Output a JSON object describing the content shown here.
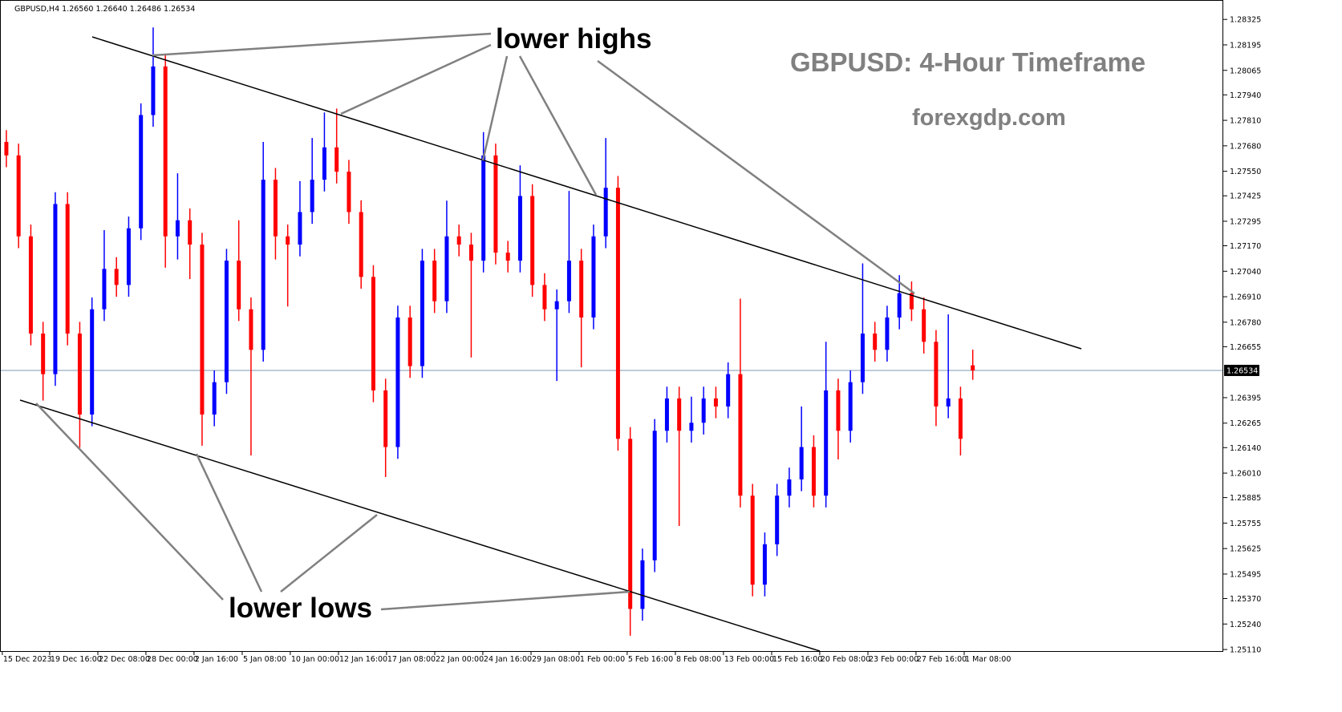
{
  "chart_data": {
    "type": "candlestick",
    "header": "GBPUSD,H4  1.26560 1.26640 1.26486 1.26534",
    "title": "GBPUSD: 4-Hour Timeframe",
    "subtitle": "forexgdp.com",
    "annotations": [
      "lower highs",
      "lower lows"
    ],
    "up_color": "#0000ff",
    "down_color": "#ff0000",
    "current_price": 1.26534,
    "open": [
      1.277,
      1.27631,
      1.27218,
      1.26722,
      1.26515,
      1.27383,
      1.26722,
      1.26309,
      1.26846,
      1.27052,
      1.2697,
      1.27259,
      1.27837,
      1.28085,
      1.27218,
      1.273,
      1.27176,
      1.26309,
      1.26474,
      1.27094,
      1.26846,
      1.26639,
      1.27507,
      1.27218,
      1.27176,
      1.27342,
      1.27507,
      1.27672,
      1.27548,
      1.27342,
      1.27011,
      1.26432,
      1.26143,
      1.26804,
      1.26556,
      1.27094,
      1.26887,
      1.27218,
      1.27176,
      1.27094,
      1.27631,
      1.27135,
      1.27094,
      1.27424,
      1.2697,
      1.26846,
      1.26887,
      1.27094,
      1.26804,
      1.27218,
      1.27466,
      1.26185,
      1.25317,
      1.25565,
      1.26226,
      1.26391,
      1.26226,
      1.26267,
      1.26391,
      1.2635,
      1.26515,
      1.25895,
      1.25441,
      1.25647,
      1.25895,
      1.25978,
      1.26143,
      1.25895,
      1.26432,
      1.26226,
      1.26474,
      1.26722,
      1.26639,
      1.26804,
      1.26928,
      1.26846,
      1.2668,
      1.2635,
      1.26391,
      1.2656
    ],
    "high": [
      1.2776,
      1.27691,
      1.27278,
      1.26782,
      1.27443,
      1.27443,
      1.26782,
      1.26906,
      1.2725,
      1.27112,
      1.27319,
      1.27897,
      1.28284,
      1.28145,
      1.2754,
      1.2736,
      1.27236,
      1.26534,
      1.27154,
      1.273,
      1.26906,
      1.277,
      1.27567,
      1.27278,
      1.275,
      1.2772,
      1.2785,
      1.2787,
      1.27608,
      1.27402,
      1.27071,
      1.26492,
      1.26864,
      1.26864,
      1.27154,
      1.27154,
      1.274,
      1.27278,
      1.27236,
      1.2775,
      1.27691,
      1.27195,
      1.2758,
      1.27484,
      1.2703,
      1.26947,
      1.2745,
      1.27154,
      1.27278,
      1.2772,
      1.27526,
      1.26245,
      1.25625,
      1.26286,
      1.26451,
      1.26451,
      1.264,
      1.26451,
      1.26451,
      1.26575,
      1.269,
      1.25955,
      1.25707,
      1.25955,
      1.26038,
      1.2635,
      1.26203,
      1.2668,
      1.26492,
      1.26534,
      1.2708,
      1.26782,
      1.26864,
      1.2702,
      1.26988,
      1.26906,
      1.2674,
      1.2682,
      1.26451,
      1.2664
    ],
    "low": [
      1.27571,
      1.27158,
      1.26662,
      1.2638,
      1.26455,
      1.26662,
      1.2614,
      1.26249,
      1.26786,
      1.2691,
      1.2691,
      1.27199,
      1.27777,
      1.27058,
      1.271,
      1.27,
      1.2615,
      1.26249,
      1.26414,
      1.26786,
      1.261,
      1.26579,
      1.271,
      1.2686,
      1.27116,
      1.27282,
      1.27447,
      1.27488,
      1.27282,
      1.26951,
      1.26372,
      1.2599,
      1.26083,
      1.26496,
      1.26496,
      1.26827,
      1.26827,
      1.27116,
      1.266,
      1.27034,
      1.27075,
      1.27034,
      1.27034,
      1.2691,
      1.26786,
      1.2648,
      1.26827,
      1.2655,
      1.26744,
      1.27158,
      1.26125,
      1.2518,
      1.25257,
      1.25505,
      1.26166,
      1.2574,
      1.26166,
      1.26207,
      1.2629,
      1.2629,
      1.25835,
      1.25381,
      1.25381,
      1.25587,
      1.25835,
      1.25918,
      1.25835,
      1.25835,
      1.2608,
      1.26166,
      1.26414,
      1.26579,
      1.26579,
      1.26744,
      1.26786,
      1.2662,
      1.2625,
      1.2629,
      1.261,
      1.26486
    ],
    "close": [
      1.27631,
      1.27218,
      1.26722,
      1.26515,
      1.27383,
      1.26722,
      1.26309,
      1.26846,
      1.27052,
      1.2697,
      1.27259,
      1.27837,
      1.28085,
      1.27218,
      1.273,
      1.27176,
      1.26309,
      1.26474,
      1.27094,
      1.26846,
      1.26639,
      1.27507,
      1.27218,
      1.27176,
      1.27342,
      1.27507,
      1.27672,
      1.27548,
      1.27342,
      1.27011,
      1.26432,
      1.26143,
      1.26804,
      1.26556,
      1.27094,
      1.26887,
      1.27218,
      1.27176,
      1.27094,
      1.27631,
      1.27135,
      1.27094,
      1.27424,
      1.2697,
      1.26846,
      1.26887,
      1.27094,
      1.26804,
      1.27218,
      1.27466,
      1.26185,
      1.25317,
      1.25565,
      1.26226,
      1.26391,
      1.26226,
      1.26267,
      1.26391,
      1.2635,
      1.26515,
      1.25895,
      1.25441,
      1.25647,
      1.25895,
      1.25978,
      1.26143,
      1.25895,
      1.26432,
      1.26226,
      1.26474,
      1.26722,
      1.26639,
      1.26804,
      1.26928,
      1.26846,
      1.2668,
      1.2635,
      1.26391,
      1.26185,
      1.26534
    ],
    "xlim": [
      -0.52,
      99.48
    ],
    "xticks": [
      {
        "value": -0.33,
        "label": "15 Dec 2023"
      },
      {
        "value": 3.54,
        "label": "19 Dec 16:00"
      },
      {
        "value": 7.48,
        "label": "22 Dec 08:00"
      },
      {
        "value": 11.41,
        "label": "28 Dec 00:00"
      },
      {
        "value": 15.34,
        "label": "2 Jan 16:00"
      },
      {
        "value": 19.28,
        "label": "5 Jan 08:00"
      },
      {
        "value": 23.21,
        "label": "10 Jan 00:00"
      },
      {
        "value": 27.15,
        "label": "12 Jan 16:00"
      },
      {
        "value": 31.08,
        "label": "17 Jan 08:00"
      },
      {
        "value": 35.02,
        "label": "22 Jan 00:00"
      },
      {
        "value": 38.95,
        "label": "24 Jan 16:00"
      },
      {
        "value": 42.89,
        "label": "29 Jan 08:00"
      },
      {
        "value": 46.82,
        "label": "1 Feb 00:00"
      },
      {
        "value": 50.75,
        "label": "5 Feb 16:00"
      },
      {
        "value": 54.69,
        "label": "8 Feb 08:00"
      },
      {
        "value": 58.62,
        "label": "13 Feb 00:00"
      },
      {
        "value": 62.56,
        "label": "15 Feb 16:00"
      },
      {
        "value": 66.49,
        "label": "20 Feb 08:00"
      },
      {
        "value": 70.43,
        "label": "23 Feb 00:00"
      },
      {
        "value": 74.36,
        "label": "27 Feb 16:00"
      },
      {
        "value": 78.3,
        "label": "1 Mar 08:00"
      }
    ],
    "ylim": [
      1.25102,
      1.28424
    ],
    "yticks": [
      1.28325,
      1.28195,
      1.28065,
      {
        "value": 1.2794,
        "label": "1.27940"
      },
      {
        "value": 1.2781,
        "label": "1.27810"
      },
      {
        "value": 1.2768,
        "label": "1.27680"
      },
      {
        "value": 1.2755,
        "label": "1.27550"
      },
      1.27425,
      1.27295,
      {
        "value": 1.2717,
        "label": "1.27170"
      },
      {
        "value": 1.2704,
        "label": "1.27040"
      },
      {
        "value": 1.2691,
        "label": "1.26910"
      },
      {
        "value": 1.2678,
        "label": "1.26780"
      },
      1.26655,
      1.26395,
      1.26265,
      {
        "value": 1.2614,
        "label": "1.26140"
      },
      {
        "value": 1.2601,
        "label": "1.26010"
      },
      1.25885,
      1.25755,
      1.25625,
      1.25495,
      {
        "value": 1.2537,
        "label": "1.25370"
      },
      {
        "value": 1.2524,
        "label": "1.25240"
      },
      {
        "value": 1.2511,
        "label": "1.25110"
      }
    ]
  }
}
